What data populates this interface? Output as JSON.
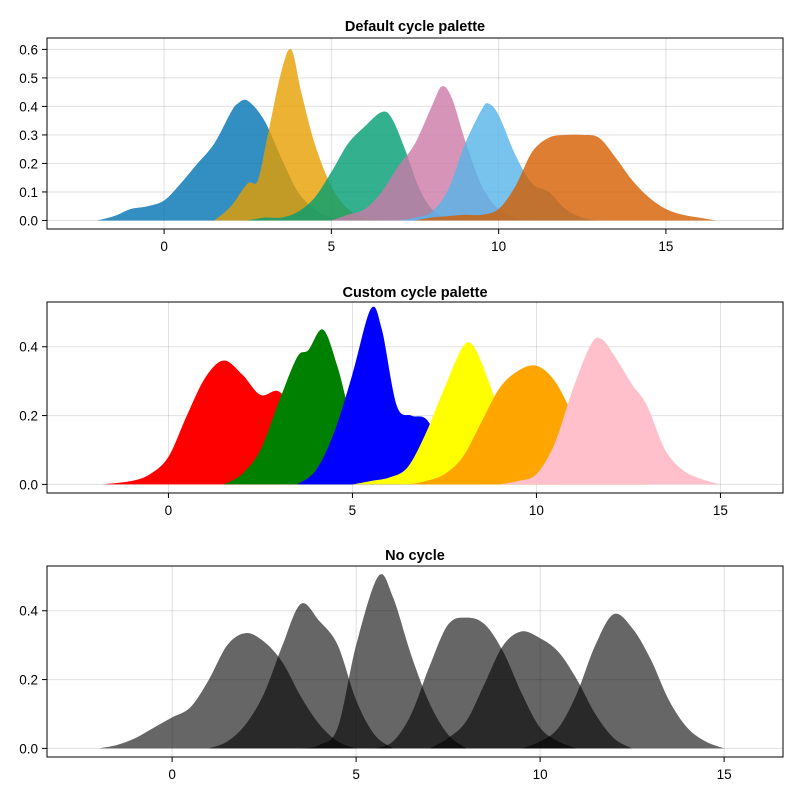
{
  "chart_data": [
    {
      "type": "area",
      "title": "Default cycle palette",
      "xlabel": "",
      "ylabel": "",
      "xlim": [
        -3.5,
        18.5
      ],
      "ylim": [
        -0.03,
        0.64
      ],
      "x_ticks": [
        0,
        5,
        10,
        15
      ],
      "y_ticks": [
        0.0,
        0.1,
        0.2,
        0.3,
        0.4,
        0.5,
        0.6
      ],
      "y_tick_labels": [
        "0.0",
        "0.1",
        "0.2",
        "0.3",
        "0.4",
        "0.5",
        "0.6"
      ],
      "grid": true,
      "series": [
        {
          "color": "#0072B2",
          "opacity": 0.8,
          "values": [
            [
              -2.0,
              0.0
            ],
            [
              -1.5,
              0.015
            ],
            [
              -1.0,
              0.04
            ],
            [
              -0.5,
              0.05
            ],
            [
              0.0,
              0.07
            ],
            [
              0.5,
              0.13
            ],
            [
              1.0,
              0.2
            ],
            [
              1.5,
              0.27
            ],
            [
              2.0,
              0.38
            ],
            [
              2.2,
              0.41
            ],
            [
              2.5,
              0.42
            ],
            [
              3.0,
              0.35
            ],
            [
              3.5,
              0.22
            ],
            [
              4.0,
              0.1
            ],
            [
              4.5,
              0.04
            ],
            [
              5.0,
              0.01
            ],
            [
              5.5,
              0.0
            ]
          ]
        },
        {
          "color": "#E69F00",
          "opacity": 0.8,
          "values": [
            [
              1.5,
              0.0
            ],
            [
              2.0,
              0.05
            ],
            [
              2.5,
              0.13
            ],
            [
              2.8,
              0.14
            ],
            [
              3.1,
              0.3
            ],
            [
              3.5,
              0.52
            ],
            [
              3.8,
              0.6
            ],
            [
              4.1,
              0.45
            ],
            [
              4.5,
              0.27
            ],
            [
              5.0,
              0.12
            ],
            [
              5.5,
              0.04
            ],
            [
              6.0,
              0.01
            ],
            [
              6.5,
              0.0
            ]
          ]
        },
        {
          "color": "#009E73",
          "opacity": 0.8,
          "values": [
            [
              2.5,
              0.0
            ],
            [
              3.0,
              0.01
            ],
            [
              3.5,
              0.01
            ],
            [
              4.0,
              0.03
            ],
            [
              4.5,
              0.08
            ],
            [
              5.0,
              0.17
            ],
            [
              5.5,
              0.27
            ],
            [
              6.0,
              0.33
            ],
            [
              6.5,
              0.38
            ],
            [
              6.8,
              0.36
            ],
            [
              7.2,
              0.25
            ],
            [
              7.6,
              0.12
            ],
            [
              8.0,
              0.04
            ],
            [
              8.5,
              0.0
            ]
          ]
        },
        {
          "color": "#CC79A7",
          "opacity": 0.8,
          "values": [
            [
              5.0,
              0.0
            ],
            [
              5.5,
              0.02
            ],
            [
              6.0,
              0.04
            ],
            [
              6.5,
              0.1
            ],
            [
              7.0,
              0.19
            ],
            [
              7.5,
              0.27
            ],
            [
              8.0,
              0.4
            ],
            [
              8.3,
              0.47
            ],
            [
              8.6,
              0.43
            ],
            [
              9.0,
              0.28
            ],
            [
              9.5,
              0.12
            ],
            [
              10.0,
              0.04
            ],
            [
              10.5,
              0.01
            ],
            [
              11.0,
              0.0
            ]
          ]
        },
        {
          "color": "#56B4E9",
          "opacity": 0.8,
          "values": [
            [
              7.0,
              0.0
            ],
            [
              7.5,
              0.01
            ],
            [
              8.0,
              0.03
            ],
            [
              8.5,
              0.11
            ],
            [
              9.0,
              0.27
            ],
            [
              9.5,
              0.39
            ],
            [
              9.7,
              0.41
            ],
            [
              10.0,
              0.37
            ],
            [
              10.5,
              0.23
            ],
            [
              11.0,
              0.13
            ],
            [
              11.5,
              0.1
            ],
            [
              12.0,
              0.04
            ],
            [
              12.5,
              0.01
            ],
            [
              13.0,
              0.0
            ]
          ]
        },
        {
          "color": "#D55E00",
          "opacity": 0.8,
          "values": [
            [
              7.5,
              0.0
            ],
            [
              8.0,
              0.01
            ],
            [
              8.5,
              0.015
            ],
            [
              9.0,
              0.02
            ],
            [
              9.5,
              0.02
            ],
            [
              10.0,
              0.04
            ],
            [
              10.5,
              0.12
            ],
            [
              11.0,
              0.24
            ],
            [
              11.5,
              0.29
            ],
            [
              12.0,
              0.3
            ],
            [
              12.5,
              0.3
            ],
            [
              13.0,
              0.29
            ],
            [
              13.5,
              0.22
            ],
            [
              14.0,
              0.14
            ],
            [
              14.5,
              0.08
            ],
            [
              15.0,
              0.04
            ],
            [
              15.5,
              0.02
            ],
            [
              16.0,
              0.01
            ],
            [
              16.5,
              0.0
            ]
          ]
        }
      ]
    },
    {
      "type": "area",
      "title": "Custom cycle palette",
      "xlabel": "",
      "ylabel": "",
      "xlim": [
        -3.3,
        16.7
      ],
      "ylim": [
        -0.025,
        0.53
      ],
      "x_ticks": [
        0,
        5,
        10,
        15
      ],
      "y_ticks": [
        0.0,
        0.2,
        0.4
      ],
      "y_tick_labels": [
        "0.0",
        "0.2",
        "0.4"
      ],
      "grid": true,
      "series": [
        {
          "color": "#FF0000",
          "opacity": 1,
          "values": [
            [
              -1.8,
              0.0
            ],
            [
              -1.0,
              0.01
            ],
            [
              -0.5,
              0.03
            ],
            [
              0.0,
              0.08
            ],
            [
              0.5,
              0.2
            ],
            [
              1.0,
              0.31
            ],
            [
              1.5,
              0.36
            ],
            [
              2.0,
              0.32
            ],
            [
              2.5,
              0.26
            ],
            [
              3.0,
              0.27
            ],
            [
              3.5,
              0.2
            ],
            [
              4.0,
              0.08
            ],
            [
              4.5,
              0.02
            ],
            [
              5.0,
              0.0
            ]
          ]
        },
        {
          "color": "#008000",
          "opacity": 1,
          "values": [
            [
              1.5,
              0.0
            ],
            [
              2.0,
              0.03
            ],
            [
              2.5,
              0.1
            ],
            [
              3.0,
              0.24
            ],
            [
              3.5,
              0.37
            ],
            [
              3.8,
              0.39
            ],
            [
              4.2,
              0.45
            ],
            [
              4.6,
              0.34
            ],
            [
              5.0,
              0.18
            ],
            [
              5.5,
              0.07
            ],
            [
              6.0,
              0.02
            ],
            [
              6.5,
              0.0
            ]
          ]
        },
        {
          "color": "#0000FF",
          "opacity": 1,
          "values": [
            [
              3.5,
              0.0
            ],
            [
              4.0,
              0.04
            ],
            [
              4.5,
              0.15
            ],
            [
              5.0,
              0.32
            ],
            [
              5.5,
              0.51
            ],
            [
              5.8,
              0.45
            ],
            [
              6.2,
              0.23
            ],
            [
              6.6,
              0.2
            ],
            [
              7.0,
              0.19
            ],
            [
              7.4,
              0.12
            ],
            [
              8.0,
              0.03
            ],
            [
              8.5,
              0.0
            ]
          ]
        },
        {
          "color": "#FFFF00",
          "opacity": 1,
          "values": [
            [
              5.0,
              0.0
            ],
            [
              5.5,
              0.01
            ],
            [
              6.0,
              0.02
            ],
            [
              6.5,
              0.05
            ],
            [
              7.0,
              0.15
            ],
            [
              7.5,
              0.28
            ],
            [
              8.0,
              0.4
            ],
            [
              8.3,
              0.4
            ],
            [
              8.7,
              0.3
            ],
            [
              9.2,
              0.15
            ],
            [
              9.7,
              0.05
            ],
            [
              10.2,
              0.01
            ],
            [
              10.7,
              0.0
            ]
          ]
        },
        {
          "color": "#FFA500",
          "opacity": 1,
          "values": [
            [
              6.5,
              0.0
            ],
            [
              7.0,
              0.01
            ],
            [
              7.5,
              0.03
            ],
            [
              8.0,
              0.08
            ],
            [
              8.5,
              0.18
            ],
            [
              9.0,
              0.28
            ],
            [
              9.5,
              0.33
            ],
            [
              10.0,
              0.345
            ],
            [
              10.5,
              0.3
            ],
            [
              11.0,
              0.2
            ],
            [
              11.5,
              0.1
            ],
            [
              12.0,
              0.04
            ],
            [
              12.5,
              0.01
            ],
            [
              13.0,
              0.0
            ]
          ]
        },
        {
          "color": "#FFC0CB",
          "opacity": 1,
          "values": [
            [
              9.0,
              0.0
            ],
            [
              9.5,
              0.01
            ],
            [
              10.0,
              0.03
            ],
            [
              10.5,
              0.12
            ],
            [
              11.0,
              0.28
            ],
            [
              11.5,
              0.41
            ],
            [
              11.8,
              0.42
            ],
            [
              12.2,
              0.36
            ],
            [
              12.6,
              0.29
            ],
            [
              13.0,
              0.23
            ],
            [
              13.5,
              0.1
            ],
            [
              14.0,
              0.04
            ],
            [
              14.5,
              0.015
            ],
            [
              15.0,
              0.0
            ]
          ]
        }
      ]
    },
    {
      "type": "area",
      "title": "No cycle",
      "xlabel": "",
      "ylabel": "",
      "xlim": [
        -3.4,
        16.6
      ],
      "ylim": [
        -0.025,
        0.53
      ],
      "x_ticks": [
        0,
        5,
        10,
        15
      ],
      "y_ticks": [
        0.0,
        0.2,
        0.4
      ],
      "y_tick_labels": [
        "0.0",
        "0.2",
        "0.4"
      ],
      "grid": true,
      "series": [
        {
          "color": "#000000",
          "opacity": 0.6,
          "values": [
            [
              -2.0,
              0.0
            ],
            [
              -1.5,
              0.01
            ],
            [
              -1.0,
              0.03
            ],
            [
              -0.5,
              0.06
            ],
            [
              0.0,
              0.09
            ],
            [
              0.5,
              0.12
            ],
            [
              1.0,
              0.2
            ],
            [
              1.5,
              0.3
            ],
            [
              2.0,
              0.335
            ],
            [
              2.5,
              0.31
            ],
            [
              3.0,
              0.25
            ],
            [
              3.5,
              0.15
            ],
            [
              4.0,
              0.07
            ],
            [
              4.5,
              0.02
            ],
            [
              5.0,
              0.0
            ]
          ]
        },
        {
          "color": "#000000",
          "opacity": 0.6,
          "values": [
            [
              1.0,
              0.0
            ],
            [
              1.5,
              0.02
            ],
            [
              2.0,
              0.07
            ],
            [
              2.5,
              0.16
            ],
            [
              3.0,
              0.3
            ],
            [
              3.5,
              0.42
            ],
            [
              4.0,
              0.37
            ],
            [
              4.5,
              0.3
            ],
            [
              5.0,
              0.14
            ],
            [
              5.5,
              0.04
            ],
            [
              6.0,
              0.0
            ]
          ]
        },
        {
          "color": "#000000",
          "opacity": 0.6,
          "values": [
            [
              3.5,
              0.0
            ],
            [
              4.0,
              0.01
            ],
            [
              4.5,
              0.06
            ],
            [
              5.0,
              0.3
            ],
            [
              5.6,
              0.5
            ],
            [
              6.0,
              0.44
            ],
            [
              6.5,
              0.27
            ],
            [
              7.0,
              0.13
            ],
            [
              7.5,
              0.04
            ],
            [
              8.0,
              0.0
            ]
          ]
        },
        {
          "color": "#000000",
          "opacity": 0.6,
          "values": [
            [
              5.5,
              0.0
            ],
            [
              6.0,
              0.02
            ],
            [
              6.5,
              0.1
            ],
            [
              7.0,
              0.24
            ],
            [
              7.5,
              0.36
            ],
            [
              8.0,
              0.38
            ],
            [
              8.5,
              0.36
            ],
            [
              9.0,
              0.28
            ],
            [
              9.5,
              0.16
            ],
            [
              10.0,
              0.06
            ],
            [
              10.5,
              0.02
            ],
            [
              11.0,
              0.0
            ]
          ]
        },
        {
          "color": "#000000",
          "opacity": 0.6,
          "values": [
            [
              7.0,
              0.0
            ],
            [
              7.5,
              0.03
            ],
            [
              8.0,
              0.08
            ],
            [
              8.5,
              0.19
            ],
            [
              9.0,
              0.3
            ],
            [
              9.5,
              0.34
            ],
            [
              10.0,
              0.32
            ],
            [
              10.5,
              0.28
            ],
            [
              11.0,
              0.2
            ],
            [
              11.5,
              0.1
            ],
            [
              12.0,
              0.03
            ],
            [
              12.5,
              0.0
            ]
          ]
        },
        {
          "color": "#000000",
          "opacity": 0.6,
          "values": [
            [
              9.5,
              0.0
            ],
            [
              10.0,
              0.02
            ],
            [
              10.5,
              0.06
            ],
            [
              11.0,
              0.16
            ],
            [
              11.5,
              0.3
            ],
            [
              12.0,
              0.39
            ],
            [
              12.5,
              0.35
            ],
            [
              13.0,
              0.26
            ],
            [
              13.5,
              0.14
            ],
            [
              14.0,
              0.06
            ],
            [
              14.5,
              0.02
            ],
            [
              15.0,
              0.0
            ]
          ]
        }
      ]
    }
  ]
}
